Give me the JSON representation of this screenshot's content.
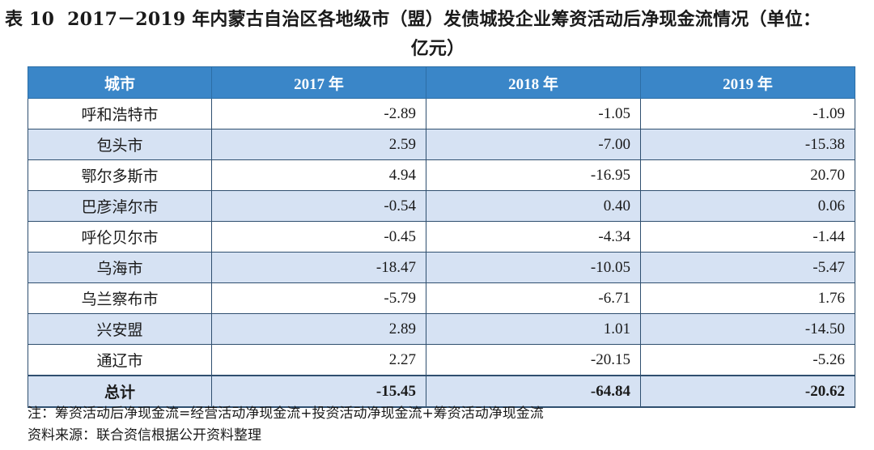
{
  "caption": {
    "label": "表 10",
    "title_line1": "2017－2019 年内蒙古自治区各地级市（盟）发债城投企业筹资活动后净现金流情况（单位：",
    "title_line2": "亿元）"
  },
  "table": {
    "headers": [
      "城市",
      "2017 年",
      "2018 年",
      "2019 年"
    ],
    "rows": [
      {
        "city": "呼和浩特市",
        "y2017": "-2.89",
        "y2018": "-1.05",
        "y2019": "-1.09"
      },
      {
        "city": "包头市",
        "y2017": "2.59",
        "y2018": "-7.00",
        "y2019": "-15.38"
      },
      {
        "city": "鄂尔多斯市",
        "y2017": "4.94",
        "y2018": "-16.95",
        "y2019": "20.70"
      },
      {
        "city": "巴彦淖尔市",
        "y2017": "-0.54",
        "y2018": "0.40",
        "y2019": "0.06"
      },
      {
        "city": "呼伦贝尔市",
        "y2017": "-0.45",
        "y2018": "-4.34",
        "y2019": "-1.44"
      },
      {
        "city": "乌海市",
        "y2017": "-18.47",
        "y2018": "-10.05",
        "y2019": "-5.47"
      },
      {
        "city": "乌兰察布市",
        "y2017": "-5.79",
        "y2018": "-6.71",
        "y2019": "1.76"
      },
      {
        "city": "兴安盟",
        "y2017": "2.89",
        "y2018": "1.01",
        "y2019": "-14.50"
      },
      {
        "city": "通辽市",
        "y2017": "2.27",
        "y2018": "-20.15",
        "y2019": "-5.26"
      }
    ],
    "total": {
      "city": "总计",
      "y2017": "-15.45",
      "y2018": "-64.84",
      "y2019": "-20.62"
    }
  },
  "notes": {
    "note": "注：筹资活动后净现金流=经营活动净现金流+投资活动净现金流+筹资活动净现金流",
    "source": "资料来源：联合资信根据公开资料整理"
  },
  "colors": {
    "header_bg": "#3a86c8",
    "stripe_bg": "#d6e2f3"
  }
}
